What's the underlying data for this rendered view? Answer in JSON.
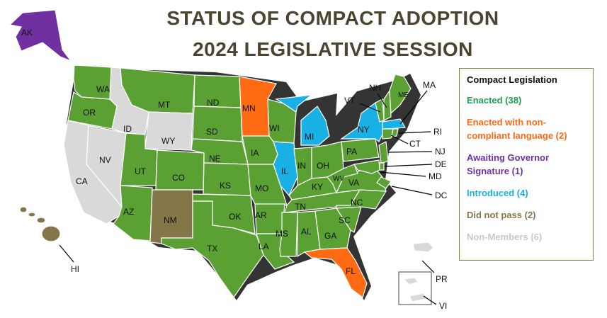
{
  "title": {
    "line1": "STATUS OF COMPACT ADOPTION",
    "line2": "2024 LEGISLATIVE SESSION"
  },
  "colors": {
    "enacted": "#5aa032",
    "noncompliant": "#ff6a13",
    "awaiting": "#7030a0",
    "introduced": "#19b0e6",
    "did_not_pass": "#857649",
    "non_member": "#d9d9d9"
  },
  "legend": {
    "heading": "Compact Legislation",
    "items": [
      {
        "key": "enacted",
        "label": "Enacted (38)",
        "color": "#1e9e50"
      },
      {
        "key": "noncompliant",
        "label": "Enacted with non-compliant language (2)",
        "color": "#ff6a13"
      },
      {
        "key": "awaiting",
        "label": "Awaiting Governor Signature (1)",
        "color": "#7030a0"
      },
      {
        "key": "introduced",
        "label": "Introduced (4)",
        "color": "#19b0e6"
      },
      {
        "key": "did_not_pass",
        "label": "Did not pass (2)",
        "color": "#857649"
      },
      {
        "key": "non_member",
        "label": "Non-Members (6)",
        "color": "#c8c8c8"
      }
    ]
  },
  "states": {
    "AK": {
      "label": "AK",
      "status": "awaiting"
    },
    "WA": {
      "label": "WA",
      "status": "enacted"
    },
    "OR": {
      "label": "OR",
      "status": "enacted"
    },
    "CA": {
      "label": "CA",
      "status": "non_member"
    },
    "NV": {
      "label": "NV",
      "status": "non_member"
    },
    "ID": {
      "label": "ID",
      "status": "non_member"
    },
    "WY": {
      "label": "WY",
      "status": "non_member"
    },
    "MT": {
      "label": "MT",
      "status": "enacted"
    },
    "UT": {
      "label": "UT",
      "status": "enacted"
    },
    "AZ": {
      "label": "AZ",
      "status": "enacted"
    },
    "CO": {
      "label": "CO",
      "status": "enacted"
    },
    "NM": {
      "label": "NM",
      "status": "did_not_pass"
    },
    "ND": {
      "label": "ND",
      "status": "enacted"
    },
    "SD": {
      "label": "SD",
      "status": "enacted"
    },
    "NE": {
      "label": "NE",
      "status": "enacted"
    },
    "KS": {
      "label": "KS",
      "status": "enacted"
    },
    "OK": {
      "label": "OK",
      "status": "enacted"
    },
    "TX": {
      "label": "TX",
      "status": "enacted"
    },
    "MN": {
      "label": "MN",
      "status": "noncompliant"
    },
    "IA": {
      "label": "IA",
      "status": "enacted"
    },
    "MO": {
      "label": "MO",
      "status": "enacted"
    },
    "AR": {
      "label": "AR",
      "status": "enacted"
    },
    "LA": {
      "label": "LA",
      "status": "enacted"
    },
    "WI": {
      "label": "WI",
      "status": "enacted"
    },
    "IL": {
      "label": "IL",
      "status": "introduced"
    },
    "MI": {
      "label": "MI",
      "status": "introduced"
    },
    "IN": {
      "label": "IN",
      "status": "enacted"
    },
    "OH": {
      "label": "OH",
      "status": "enacted"
    },
    "KY": {
      "label": "KY",
      "status": "enacted"
    },
    "TN": {
      "label": "TN",
      "status": "enacted"
    },
    "MS": {
      "label": "MS",
      "status": "enacted"
    },
    "AL": {
      "label": "AL",
      "status": "enacted"
    },
    "GA": {
      "label": "GA",
      "status": "enacted"
    },
    "FL": {
      "label": "FL",
      "status": "noncompliant"
    },
    "SC": {
      "label": "SC",
      "status": "enacted"
    },
    "NC": {
      "label": "NC",
      "status": "enacted"
    },
    "VA": {
      "label": "VA",
      "status": "enacted"
    },
    "WV": {
      "label": "WV",
      "status": "enacted"
    },
    "PA": {
      "label": "PA",
      "status": "enacted"
    },
    "NY": {
      "label": "NY",
      "status": "introduced"
    },
    "VT": {
      "label": "VT",
      "status": "enacted"
    },
    "NH": {
      "label": "NH",
      "status": "enacted"
    },
    "ME": {
      "label": "ME",
      "status": "enacted"
    },
    "MA": {
      "label": "MA",
      "status": "introduced"
    },
    "RI": {
      "label": "RI",
      "status": "enacted"
    },
    "CT": {
      "label": "CT",
      "status": "enacted"
    },
    "NJ": {
      "label": "NJ",
      "status": "enacted"
    },
    "DE": {
      "label": "DE",
      "status": "enacted"
    },
    "MD": {
      "label": "MD",
      "status": "enacted"
    },
    "DC": {
      "label": "DC",
      "status": "enacted"
    },
    "HI": {
      "label": "HI",
      "status": "did_not_pass"
    },
    "PR": {
      "label": "PR",
      "status": "non_member"
    },
    "VI": {
      "label": "VI",
      "status": "non_member"
    }
  }
}
